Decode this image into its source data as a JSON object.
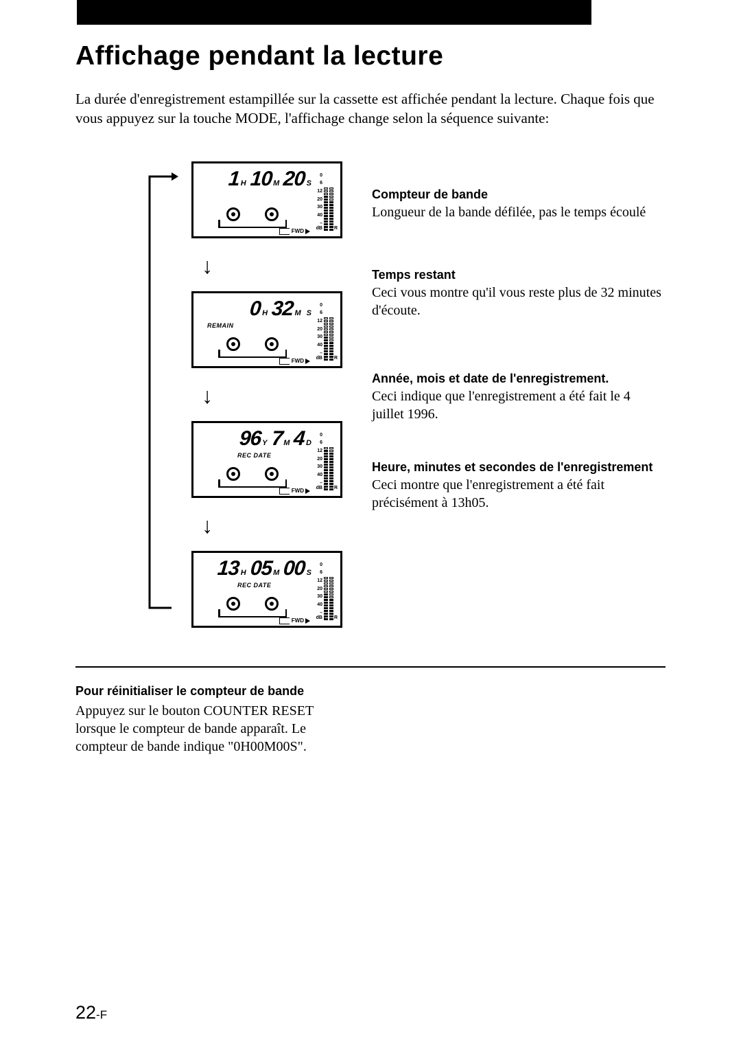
{
  "title": "Affichage pendant la lecture",
  "intro": "La durée d'enregistrement estampillée sur la cassette est affichée pendant la lecture. Chaque fois que vous appuyez sur la touche MODE, l'affichage change selon la séquence suivante:",
  "vu_scale": [
    "0",
    "6",
    "12",
    "20",
    "30",
    "40",
    "–dB"
  ],
  "vu_lr": {
    "l": "L",
    "r": "R"
  },
  "fwd_label": "FWD",
  "screens": [
    {
      "digits": [
        {
          "v": "1",
          "u": "H"
        },
        {
          "v": "10",
          "u": "M"
        },
        {
          "v": "20",
          "u": "S"
        }
      ],
      "sublabel": "",
      "lbar": 13,
      "rbar": 11,
      "desc_title": "Compteur de bande",
      "desc_body": "Longueur de la bande défilée, pas le temps écoulé"
    },
    {
      "digits": [
        {
          "v": "0",
          "u": "H"
        },
        {
          "v": "32",
          "u": "M"
        },
        {
          "v": "",
          "u": "S"
        }
      ],
      "sublabel": "REMAIN",
      "lbar": 9,
      "rbar": 7,
      "desc_title": "Temps restant",
      "desc_body": "Ceci vous montre qu'il vous reste plus de 32 minutes d'écoute."
    },
    {
      "digits": [
        {
          "v": "96",
          "u": "Y"
        },
        {
          "v": "7",
          "u": "M"
        },
        {
          "v": "4",
          "u": "D"
        }
      ],
      "sublabel": "REC DATE",
      "lbar": 15,
      "rbar": 14,
      "desc_title": "Année, mois et date de l'enregistrement.",
      "desc_body": "Ceci indique que l'enregistrement a été fait le 4 juillet 1996."
    },
    {
      "digits": [
        {
          "v": "13",
          "u": "H"
        },
        {
          "v": "05",
          "u": "M"
        },
        {
          "v": "00",
          "u": "S"
        }
      ],
      "sublabel": "REC DATE",
      "lbar": 10,
      "rbar": 8,
      "desc_title": "Heure, minutes et secondes de l'enregistrement",
      "desc_body": "Ceci montre que l'enregistrement a été fait précisément à 13h05."
    }
  ],
  "footer": {
    "title": "Pour réinitialiser le compteur de bande",
    "body": "Appuyez sur le bouton COUNTER RESET lorsque le compteur de bande apparaît. Le compteur de bande indique \"0H00M00S\"."
  },
  "pagenum": {
    "n": "22",
    "sfx": "-F"
  },
  "colors": {
    "fg": "#000000",
    "bg": "#ffffff"
  }
}
